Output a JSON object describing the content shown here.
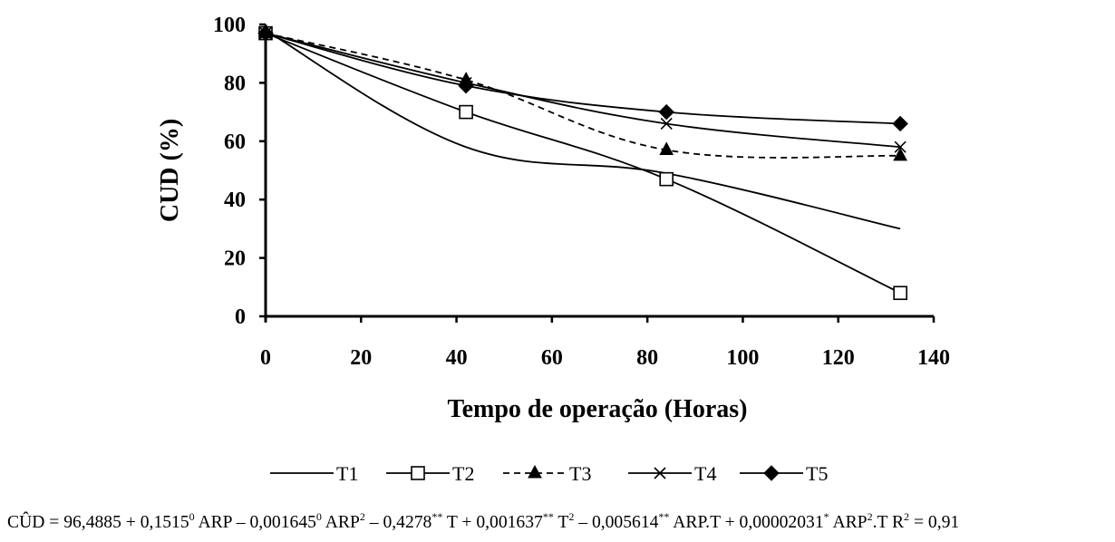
{
  "chart_data": {
    "type": "line",
    "title": "",
    "xlabel": "Tempo de operação (Horas)",
    "ylabel": "CUD (%)",
    "xlim": [
      0,
      140
    ],
    "ylim": [
      0,
      100
    ],
    "x_ticks": [
      "0",
      "20",
      "40",
      "60",
      "80",
      "100",
      "120",
      "140"
    ],
    "y_ticks": [
      "0",
      "20",
      "40",
      "60",
      "80",
      "100"
    ],
    "grid": false,
    "legend_position": "bottom",
    "series": [
      {
        "name": "T1",
        "marker": "none",
        "line_style": "solid",
        "color": "#000000",
        "x": [
          0,
          42,
          84,
          133
        ],
        "y": [
          98,
          58,
          49,
          30
        ]
      },
      {
        "name": "T2",
        "marker": "open-square",
        "line_style": "solid",
        "color": "#000000",
        "x": [
          0,
          42,
          84,
          133
        ],
        "y": [
          97,
          70,
          47,
          8
        ]
      },
      {
        "name": "T3",
        "marker": "filled-triangle",
        "line_style": "dashed",
        "color": "#000000",
        "x": [
          0,
          42,
          84,
          133
        ],
        "y": [
          97,
          81,
          57,
          55
        ]
      },
      {
        "name": "T4",
        "marker": "x",
        "line_style": "solid",
        "color": "#000000",
        "x": [
          0,
          42,
          84,
          133
        ],
        "y": [
          97,
          80,
          66,
          58
        ]
      },
      {
        "name": "T5",
        "marker": "filled-diamond",
        "line_style": "solid",
        "color": "#000000",
        "x": [
          0,
          42,
          84,
          133
        ],
        "y": [
          97,
          79,
          70,
          66
        ]
      }
    ]
  },
  "equation": {
    "p1": "CÛD = 96,4885 + 0,1515",
    "s1": "0",
    "p2": " ARP – 0,001645",
    "s2": "0",
    "p3": " ARP",
    "s3": "2",
    "p4": " – 0,4278",
    "s4": "**",
    "p5": " T + 0,001637",
    "s5": "**",
    "p6": " T",
    "s6": "2",
    "p7": " – 0,005614",
    "s7": "**",
    "p8": " ARP.T + 0,00002031",
    "s8": "*",
    "p9": " ARP",
    "s9": "2",
    "p10": ".T  R",
    "s10": "2",
    "p11": " = 0,91"
  }
}
